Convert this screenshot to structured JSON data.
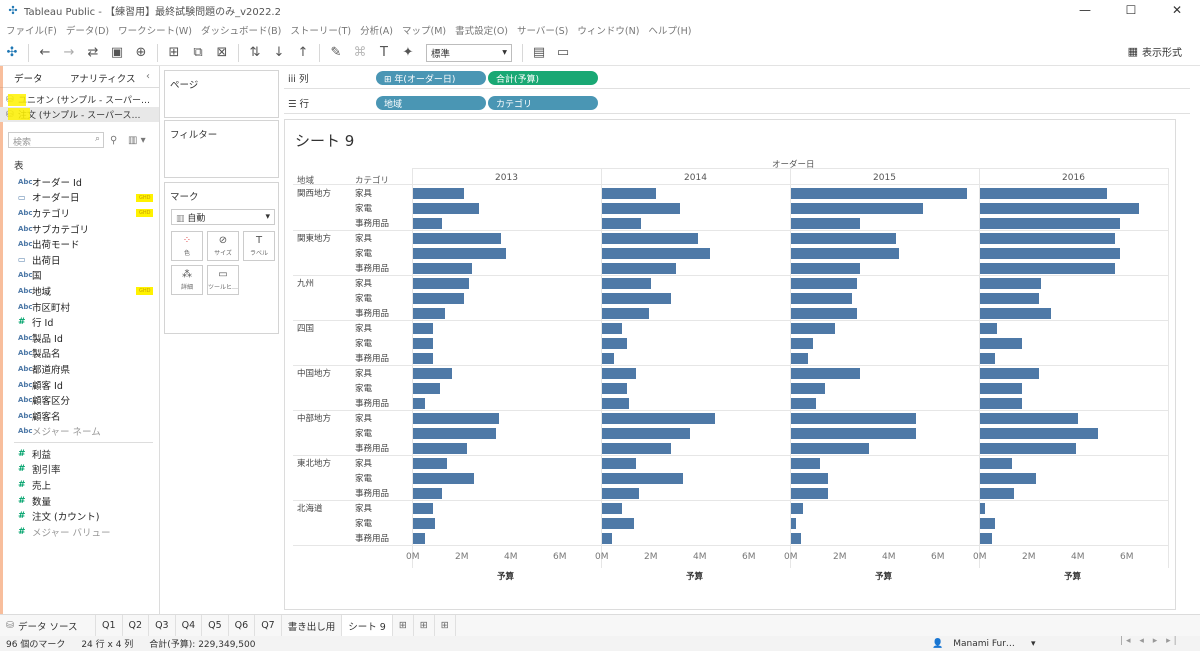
{
  "window": {
    "title": "Tableau Public - 【練習用】最終試験問題のみ_v2022.2",
    "minimize": "—",
    "maximize": "☐",
    "close": "✕"
  },
  "menu": [
    "ファイル(F)",
    "データ(D)",
    "ワークシート(W)",
    "ダッシュボード(B)",
    "ストーリー(T)",
    "分析(A)",
    "マップ(M)",
    "書式設定(O)",
    "サーバー(S)",
    "ウィンドウ(N)",
    "ヘルプ(H)"
  ],
  "toolbar": {
    "fit_select": "標準",
    "present_label": "表示形式"
  },
  "data_pane": {
    "tab_data": "データ",
    "tab_analytics": "アナリティクス",
    "collapse": "‹",
    "sources": [
      {
        "label": "ユニオン (サンプル - スーパー…"
      },
      {
        "label": "注文 (サンプル - スーパース…"
      }
    ],
    "search_placeholder": "検索",
    "table_title": "表",
    "dimensions": [
      {
        "type": "Abc",
        "name": "オーダー Id"
      },
      {
        "type": "date",
        "name": "オーダー日",
        "mark": "GHD"
      },
      {
        "type": "Abc",
        "name": "カテゴリ",
        "mark": "GHD"
      },
      {
        "type": "Abc",
        "name": "サブカテゴリ"
      },
      {
        "type": "Abc",
        "name": "出荷モード"
      },
      {
        "type": "date",
        "name": "出荷日"
      },
      {
        "type": "Abc",
        "name": "国"
      },
      {
        "type": "Abc",
        "name": "地域",
        "mark": "GHD"
      },
      {
        "type": "Abc",
        "name": "市区町村"
      },
      {
        "type": "#",
        "name": "行 Id"
      },
      {
        "type": "Abc",
        "name": "製品 Id"
      },
      {
        "type": "Abc",
        "name": "製品名"
      },
      {
        "type": "Abc",
        "name": "都道府県"
      },
      {
        "type": "Abc",
        "name": "顧客 Id"
      },
      {
        "type": "Abc",
        "name": "顧客区分"
      },
      {
        "type": "Abc",
        "name": "顧客名"
      },
      {
        "type": "Abc",
        "name": "メジャー ネーム",
        "gray": true
      }
    ],
    "measures": [
      {
        "type": "#",
        "name": "利益"
      },
      {
        "type": "#",
        "name": "割引率"
      },
      {
        "type": "#",
        "name": "売上"
      },
      {
        "type": "#",
        "name": "数量"
      },
      {
        "type": "#",
        "name": "注文 (カウント)"
      },
      {
        "type": "#",
        "name": "メジャー バリュー",
        "gray": true
      }
    ]
  },
  "cards": {
    "pages": "ページ",
    "filters": "フィルター",
    "marks": "マーク",
    "marks_type": "自動",
    "mark_buttons": [
      {
        "label": "色",
        "icon": "color-icon"
      },
      {
        "label": "サイズ",
        "icon": "size-icon"
      },
      {
        "label": "ラベル",
        "icon": "label-icon"
      },
      {
        "label": "詳細",
        "icon": "detail-icon"
      },
      {
        "label": "ツールヒ…",
        "icon": "tooltip-icon"
      }
    ]
  },
  "shelves": {
    "columns_label": "列",
    "rows_label": "行",
    "columns_pills": [
      "⊞ 年(オーダー日)",
      "合計(予算)"
    ],
    "rows_pills": [
      "地域",
      "カテゴリ"
    ]
  },
  "chart_data": {
    "type": "bar",
    "title": "シート 9",
    "column_header_title": "オーダー日",
    "row_header_labels": [
      "地域",
      "カテゴリ"
    ],
    "years": [
      "2013",
      "2014",
      "2015",
      "2016"
    ],
    "regions": [
      "関西地方",
      "関東地方",
      "九州",
      "四国",
      "中国地方",
      "中部地方",
      "東北地方",
      "北海道"
    ],
    "categories": [
      "家具",
      "家電",
      "事務用品"
    ],
    "xlabel": "予算",
    "x_ticks": [
      "0M",
      "2M",
      "4M",
      "6M"
    ],
    "xlim": [
      0,
      7.5
    ],
    "unit": "M",
    "values": {
      "2013": [
        [
          2.1,
          2.7,
          1.2
        ],
        [
          3.6,
          3.8,
          2.4
        ],
        [
          2.3,
          2.1,
          1.3
        ],
        [
          0.8,
          0.8,
          0.8
        ],
        [
          1.6,
          1.1,
          0.5
        ],
        [
          3.5,
          3.4,
          2.2
        ],
        [
          1.4,
          2.5,
          1.2
        ],
        [
          0.8,
          0.9,
          0.5
        ]
      ],
      "2014": [
        [
          2.2,
          3.2,
          1.6
        ],
        [
          3.9,
          4.4,
          3.0
        ],
        [
          2.0,
          2.8,
          1.9
        ],
        [
          0.8,
          1.0,
          0.5
        ],
        [
          1.4,
          1.0,
          1.1
        ],
        [
          4.6,
          3.6,
          2.8
        ],
        [
          1.4,
          3.3,
          1.5
        ],
        [
          0.8,
          1.3,
          0.4
        ]
      ],
      "2015": [
        [
          7.2,
          5.4,
          2.8
        ],
        [
          4.3,
          4.4,
          2.8
        ],
        [
          2.7,
          2.5,
          2.7
        ],
        [
          1.8,
          0.9,
          0.7
        ],
        [
          2.8,
          1.4,
          1.0
        ],
        [
          5.1,
          5.1,
          3.2
        ],
        [
          1.2,
          1.5,
          1.5
        ],
        [
          0.5,
          0.2,
          0.4
        ]
      ],
      "2016": [
        [
          5.2,
          6.5,
          5.7
        ],
        [
          5.5,
          5.7,
          5.5
        ],
        [
          2.5,
          2.4,
          2.9
        ],
        [
          0.7,
          1.7,
          0.6
        ],
        [
          2.4,
          1.7,
          1.7
        ],
        [
          4.0,
          4.8,
          3.9
        ],
        [
          1.3,
          2.3,
          1.4
        ],
        [
          0.2,
          0.6,
          0.5
        ]
      ]
    }
  },
  "tabs": {
    "datasource": "データ ソース",
    "sheets": [
      "Q1",
      "Q2",
      "Q3",
      "Q4",
      "Q5",
      "Q6",
      "Q7",
      "書き出し用",
      "シート 9"
    ],
    "active": "シート 9"
  },
  "status": {
    "marks": "96 個のマーク",
    "dims": "24 行 x 4 列",
    "sum": "合計(予算): 229,349,500",
    "user": "Manami Fur…"
  }
}
